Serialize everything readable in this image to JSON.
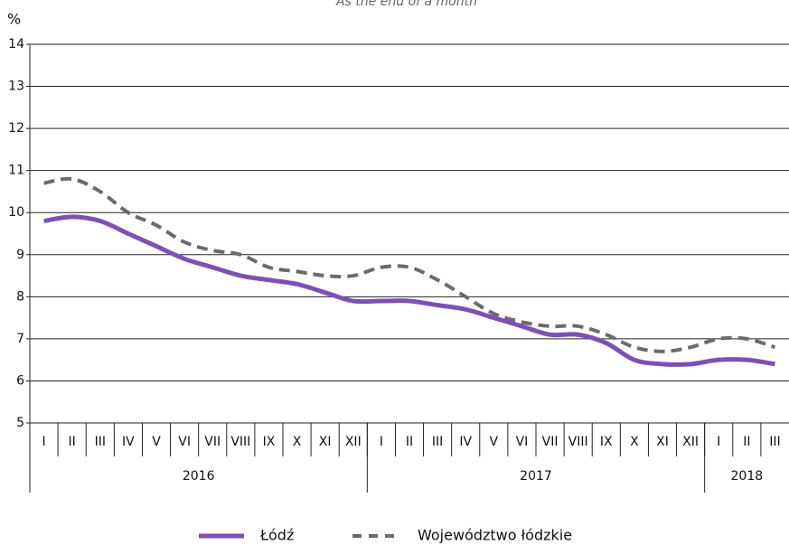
{
  "chart_data": {
    "type": "line",
    "title": "As the end of a month",
    "y_label": "%",
    "categories": [
      "I",
      "II",
      "III",
      "IV",
      "V",
      "VI",
      "VII",
      "VIII",
      "IX",
      "X",
      "XI",
      "XII",
      "I",
      "II",
      "III",
      "IV",
      "V",
      "VI",
      "VII",
      "VIII",
      "IX",
      "X",
      "XI",
      "XII",
      "I",
      "II",
      "III"
    ],
    "x_groups": [
      "2016",
      "2017",
      "2018"
    ],
    "series": [
      {
        "name": "Łódź",
        "color": "#7b52b4",
        "dash": false,
        "values": [
          9.8,
          9.9,
          9.8,
          9.5,
          9.2,
          8.9,
          8.7,
          8.5,
          8.4,
          8.3,
          8.1,
          7.9,
          7.9,
          7.9,
          7.8,
          7.7,
          7.5,
          7.3,
          7.1,
          7.1,
          6.9,
          6.5,
          6.4,
          6.4,
          6.5,
          6.5,
          6.4
        ]
      },
      {
        "name": "Województwo łódzkie",
        "color": "#6b6b6b",
        "dash": true,
        "values": [
          10.7,
          10.8,
          10.5,
          10.0,
          9.7,
          9.3,
          9.1,
          9.0,
          8.7,
          8.6,
          8.5,
          8.5,
          8.7,
          8.7,
          8.4,
          8.0,
          7.6,
          7.4,
          7.3,
          7.3,
          7.1,
          6.8,
          6.7,
          6.8,
          7.0,
          7.0,
          6.8
        ]
      }
    ],
    "ylim": [
      5,
      14
    ],
    "yticks": [
      5,
      6,
      7,
      8,
      9,
      10,
      11,
      12,
      13,
      14
    ],
    "grid": true
  }
}
